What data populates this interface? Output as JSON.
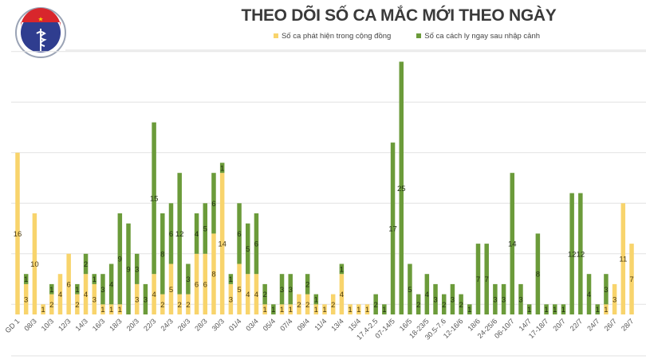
{
  "logo": {
    "top_text": "BỘ Y TẾ",
    "bottom_text": "MINISTRY OF HEALTH"
  },
  "chart_data": {
    "type": "bar",
    "stacked": true,
    "title": "THEO DÕI SỐ CA MẮC MỚI THEO NGÀY",
    "legend_position": "top",
    "grid": true,
    "series": [
      {
        "name": "Số ca phát hiện trong cộng đồng",
        "color": "#f8d46c",
        "values": [
          16,
          3,
          10,
          1,
          2,
          4,
          6,
          2,
          4,
          3,
          1,
          1,
          1,
          0,
          3,
          0,
          4,
          2,
          5,
          2,
          2,
          6,
          6,
          8,
          14,
          3,
          5,
          4,
          4,
          1,
          0,
          1,
          1,
          2,
          2,
          1,
          1,
          2,
          4,
          1,
          1,
          1,
          0,
          0,
          0,
          0,
          0,
          0,
          0,
          0,
          0,
          0,
          0,
          0,
          0,
          0,
          0,
          0,
          0,
          0,
          0,
          0,
          0,
          0,
          0,
          0,
          0,
          0,
          0,
          1,
          3,
          11,
          7
        ]
      },
      {
        "name": "Số ca cách ly ngay sau nhập cảnh",
        "color": "#6b9b3a",
        "values": [
          0,
          1,
          0,
          0,
          1,
          0,
          0,
          1,
          2,
          1,
          3,
          4,
          9,
          9,
          3,
          3,
          15,
          8,
          6,
          12,
          3,
          4,
          5,
          6,
          1,
          1,
          6,
          5,
          6,
          2,
          1,
          3,
          3,
          0,
          2,
          1,
          0,
          0,
          1,
          0,
          0,
          0,
          2,
          1,
          17,
          25,
          5,
          2,
          4,
          3,
          2,
          3,
          2,
          1,
          7,
          7,
          3,
          3,
          14,
          3,
          1,
          8,
          1,
          1,
          1,
          12,
          12,
          4,
          1,
          3,
          0,
          0,
          0
        ]
      }
    ],
    "categories": [
      "GD 1",
      "",
      "08/3",
      "",
      "10/3",
      "",
      "12/3",
      "",
      "14/3",
      "",
      "16/3",
      "",
      "18/3",
      "",
      "20/3",
      "",
      "22/3",
      "",
      "24/3",
      "",
      "26/3",
      "",
      "28/3",
      "",
      "30/3",
      "",
      "01/4",
      "",
      "03/4",
      "",
      "05/4",
      "",
      "07/4",
      "",
      "09/4",
      "",
      "11/4",
      "",
      "13/4",
      "",
      "15/4",
      "",
      "17.4-2.5",
      "",
      "07-14/5",
      "",
      "16/5",
      "",
      "18-23/5",
      "",
      "30.5-7.6",
      "",
      "12-16/6",
      "",
      "18/6",
      "",
      "24-25/6",
      "",
      "06-10/7",
      "",
      "14/7",
      "",
      "17-18/7",
      "",
      "20/7",
      "",
      "22/7",
      "",
      "24/7",
      "",
      "26/7",
      "",
      "28/7"
    ],
    "ylim": [
      0,
      27
    ]
  }
}
